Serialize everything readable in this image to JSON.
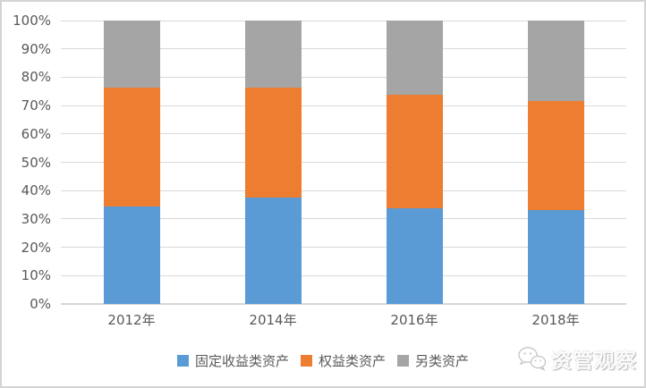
{
  "chart_data": {
    "type": "bar",
    "variant": "stacked-100-percent",
    "categories": [
      "2012年",
      "2014年",
      "2016年",
      "2018年"
    ],
    "series": [
      {
        "name": "固定收益类资产",
        "color": "#5B9BD5",
        "values": [
          34.5,
          37.6,
          33.7,
          33.0
        ]
      },
      {
        "name": "权益类资产",
        "color": "#ED7D31",
        "values": [
          42.0,
          38.7,
          40.0,
          38.6
        ]
      },
      {
        "name": "另类资产",
        "color": "#A5A5A5",
        "values": [
          23.5,
          23.7,
          26.3,
          28.4
        ]
      }
    ],
    "title": "",
    "xlabel": "",
    "ylabel": "",
    "y_ticks": [
      "0%",
      "10%",
      "20%",
      "30%",
      "40%",
      "50%",
      "60%",
      "70%",
      "80%",
      "90%",
      "100%"
    ],
    "ylim": [
      0,
      100
    ],
    "grid": true,
    "legend_position": "bottom"
  },
  "axis": {
    "tick_color": "#595959",
    "gridline_color": "#d9d9d9"
  },
  "watermark": {
    "label": "资管观察",
    "icon": "wechat-icon"
  }
}
